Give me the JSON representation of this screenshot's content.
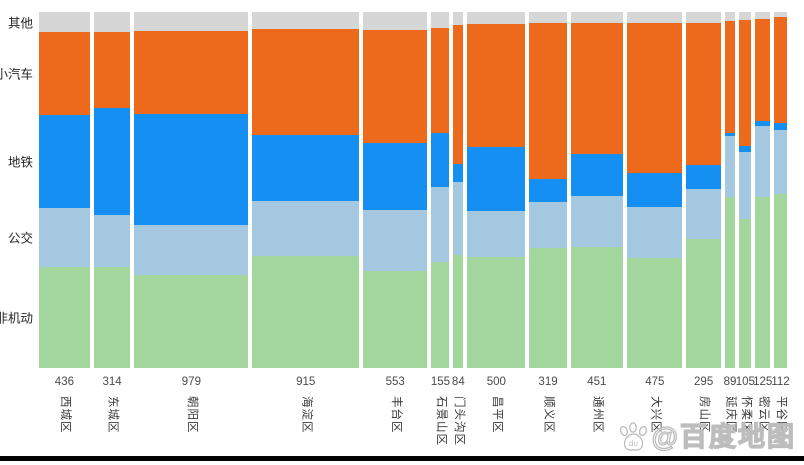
{
  "watermark": {
    "text": "@百度地图",
    "logo": "baidu-paw-icon"
  },
  "chart_data": {
    "type": "bar",
    "variant": "marimekko-100pct-stacked",
    "title": "",
    "xlabel": "",
    "ylabel": "",
    "grid": false,
    "legend_position": "none (segment names shown as left axis labels)",
    "bar_width_mode": "proportional-to-district-total",
    "categories": [
      "西城区",
      "东城区",
      "朝阳区",
      "海淀区",
      "丰台区",
      "石景山区",
      "门头沟区",
      "昌平区",
      "顺义区",
      "通州区",
      "大兴区",
      "房山区",
      "延庆区",
      "怀柔区",
      "密云区",
      "平谷区"
    ],
    "totals": [
      436,
      314,
      979,
      915,
      553,
      155,
      84,
      500,
      319,
      451,
      475,
      295,
      89,
      105,
      125,
      112
    ],
    "segment_colors": [
      "#d6d6d6",
      "#ed6a1d",
      "#1590f2",
      "#a5c8e1",
      "#a3d69c"
    ],
    "series": [
      {
        "name": "其他",
        "unit": "%",
        "values": [
          5.6,
          5.6,
          5.3,
          4.8,
          5.1,
          4.5,
          3.7,
          3.4,
          3.1,
          3.1,
          3.1,
          3.1,
          2.5,
          2.2,
          2.0,
          1.4
        ]
      },
      {
        "name": "小汽车",
        "unit": "%",
        "values": [
          23.3,
          21.3,
          23.3,
          29.8,
          31.7,
          29.5,
          39.0,
          34.6,
          43.8,
          36.8,
          42.1,
          39.9,
          31.5,
          35.4,
          28.7,
          29.8
        ]
      },
      {
        "name": "地铁",
        "unit": "%",
        "values": [
          26.1,
          30.1,
          31.2,
          18.5,
          18.8,
          15.2,
          5.1,
          18.0,
          6.5,
          11.8,
          9.6,
          6.7,
          0.8,
          1.7,
          1.4,
          2.0
        ]
      },
      {
        "name": "公交",
        "unit": "%",
        "values": [
          16.6,
          14.6,
          14.0,
          15.4,
          17.1,
          21.1,
          20.5,
          12.9,
          12.9,
          14.3,
          14.3,
          14.0,
          17.1,
          18.8,
          19.9,
          18.0
        ]
      },
      {
        "name": "非机动",
        "unit": "%",
        "values": [
          28.4,
          28.4,
          26.2,
          31.5,
          27.3,
          29.7,
          31.7,
          31.1,
          33.7,
          34.0,
          30.9,
          36.3,
          48.1,
          41.9,
          48.0,
          48.8
        ]
      }
    ]
  }
}
